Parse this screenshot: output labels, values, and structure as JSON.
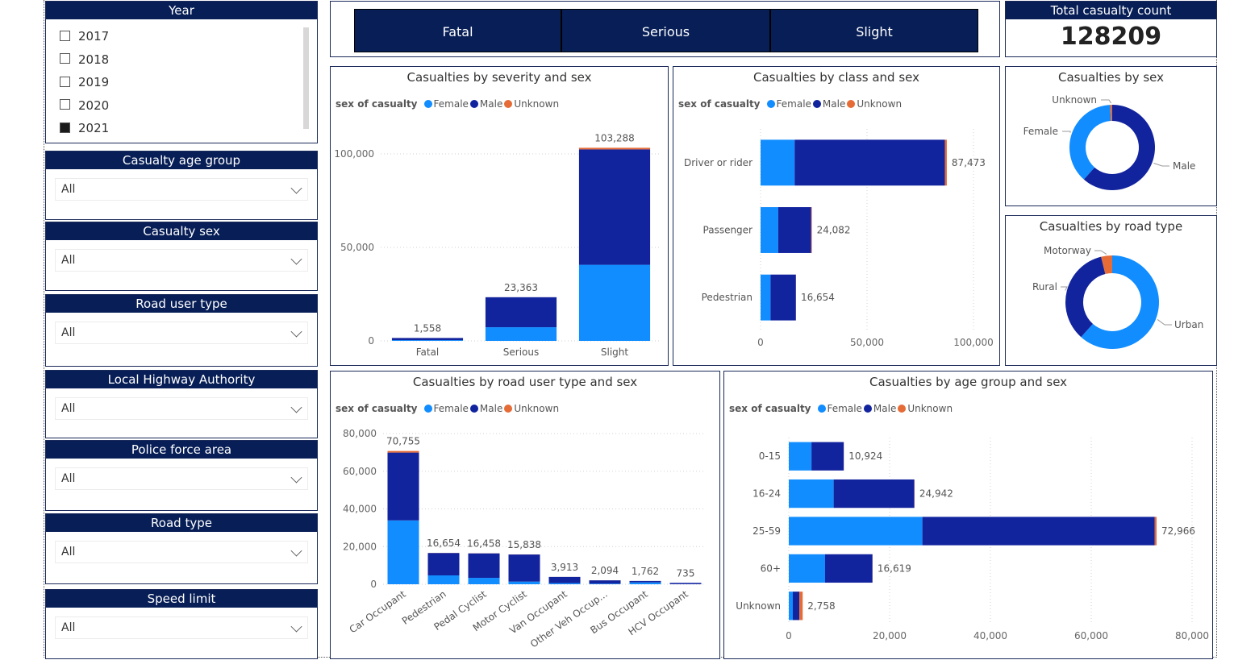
{
  "year_slicer": {
    "title": "Year",
    "items": [
      {
        "label": "2017",
        "checked": false
      },
      {
        "label": "2018",
        "checked": false
      },
      {
        "label": "2019",
        "checked": false
      },
      {
        "label": "2020",
        "checked": false
      },
      {
        "label": "2021",
        "checked": true
      }
    ]
  },
  "slicers": [
    {
      "title": "Casualty age group",
      "value": "All"
    },
    {
      "title": "Casualty sex",
      "value": "All"
    },
    {
      "title": "Road user type",
      "value": "All"
    },
    {
      "title": "Local Highway Authority",
      "value": "All"
    },
    {
      "title": "Police force area",
      "value": "All"
    },
    {
      "title": "Road type",
      "value": "All"
    },
    {
      "title": "Speed limit",
      "value": "All"
    }
  ],
  "severity_buttons": [
    "Fatal",
    "Serious",
    "Slight"
  ],
  "kpi": {
    "title": "Total casualty count",
    "value": "128209"
  },
  "colors": {
    "female": "#118dff",
    "male": "#12239e",
    "unknown": "#e66c37",
    "navy": "#071e56"
  },
  "legend": {
    "title": "sex of casualty",
    "items": [
      "Female",
      "Male",
      "Unknown"
    ]
  },
  "chart_data": [
    {
      "id": "severity",
      "type": "bar",
      "title": "Casualties by severity and sex",
      "categories": [
        "Fatal",
        "Serious",
        "Slight"
      ],
      "series": [
        {
          "name": "Female",
          "values": [
            400,
            7300,
            40700
          ]
        },
        {
          "name": "Male",
          "values": [
            1150,
            16050,
            61700
          ]
        },
        {
          "name": "Unknown",
          "values": [
            8,
            13,
            888
          ]
        }
      ],
      "totals": [
        "1,558",
        "23,363",
        "103,288"
      ],
      "ylim": [
        0,
        100000
      ],
      "yticks": [
        "0",
        "50,000",
        "100,000"
      ],
      "yticks_values": [
        0,
        50000,
        100000
      ]
    },
    {
      "id": "class",
      "type": "bar",
      "title": "Casualties by class and sex",
      "categories": [
        "Driver or rider",
        "Passenger",
        "Pedestrian"
      ],
      "series": [
        {
          "name": "Female",
          "values": [
            16000,
            8300,
            4700
          ]
        },
        {
          "name": "Male",
          "values": [
            70600,
            15500,
            11900
          ]
        },
        {
          "name": "Unknown",
          "values": [
            873,
            282,
            54
          ]
        }
      ],
      "totals": [
        "87,473",
        "24,082",
        "16,654"
      ],
      "xlim": [
        0,
        100000
      ],
      "xticks": [
        "0",
        "50,000",
        "100,000"
      ],
      "xticks_values": [
        0,
        50000,
        100000
      ]
    },
    {
      "id": "sex",
      "type": "pie",
      "title": "Casualties by sex",
      "labels": [
        "Male",
        "Female",
        "Unknown"
      ],
      "values": [
        78900,
        48300,
        1009
      ]
    },
    {
      "id": "road",
      "type": "pie",
      "title": "Casualties by road type",
      "labels": [
        "Urban",
        "Rural",
        "Motorway"
      ],
      "values": [
        79000,
        44300,
        4909
      ]
    },
    {
      "id": "roaduser",
      "type": "bar",
      "title": "Casualties by road user type and sex",
      "categories": [
        "Car Occupant",
        "Pedestrian",
        "Pedal Cyclist",
        "Motor Cyclist",
        "Van Occupant",
        "Other Veh Occup...",
        "Bus Occupant",
        "HCV Occupant"
      ],
      "series": [
        {
          "name": "Female",
          "values": [
            33900,
            4700,
            3400,
            1400,
            600,
            300,
            1000,
            60
          ]
        },
        {
          "name": "Male",
          "values": [
            36000,
            11900,
            13000,
            14400,
            3300,
            1780,
            760,
            670
          ]
        },
        {
          "name": "Unknown",
          "values": [
            855,
            54,
            58,
            38,
            13,
            14,
            2,
            5
          ]
        }
      ],
      "totals": [
        "70,755",
        "16,654",
        "16,458",
        "15,838",
        "3,913",
        "2,094",
        "1,762",
        "735"
      ],
      "ylim": [
        0,
        80000
      ],
      "yticks": [
        "0",
        "20,000",
        "40,000",
        "60,000",
        "80,000"
      ],
      "yticks_values": [
        0,
        20000,
        40000,
        60000,
        80000
      ]
    },
    {
      "id": "age",
      "type": "bar",
      "title": "Casualties by age group and sex",
      "categories": [
        "0-15",
        "16-24",
        "25-59",
        "60+",
        "Unknown"
      ],
      "series": [
        {
          "name": "Female",
          "values": [
            4500,
            8900,
            26500,
            7200,
            800
          ]
        },
        {
          "name": "Male",
          "values": [
            6400,
            16000,
            46100,
            9400,
            1300
          ]
        },
        {
          "name": "Unknown",
          "values": [
            24,
            42,
            366,
            19,
            658
          ]
        }
      ],
      "totals": [
        "10,924",
        "24,942",
        "72,966",
        "16,619",
        "2,758"
      ],
      "xlim": [
        0,
        80000
      ],
      "xticks": [
        "0",
        "20,000",
        "40,000",
        "60,000",
        "80,000"
      ],
      "xticks_values": [
        0,
        20000,
        40000,
        60000,
        80000
      ]
    }
  ]
}
